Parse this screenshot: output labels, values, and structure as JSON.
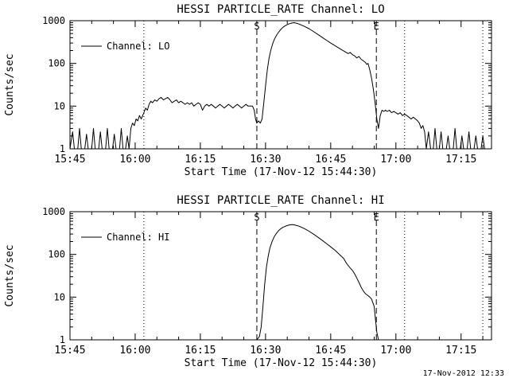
{
  "page": {
    "timestamp": "17-Nov-2012 12:33",
    "background": "#ffffff",
    "line_color": "#000000"
  },
  "chart_data": [
    {
      "type": "line",
      "title": "HESSI PARTICLE_RATE Channel: LO",
      "xlabel": "Start Time (17-Nov-12 15:44:30)",
      "ylabel": "Counts/sec",
      "yscale": "log",
      "ylim": [
        1,
        1000
      ],
      "yticks": [
        1,
        10,
        100,
        1000
      ],
      "x_unit": "minutes since 15:45",
      "xlim": [
        0,
        97
      ],
      "x_minor_step": 5,
      "xticks": [
        {
          "t": 0,
          "label": "15:45"
        },
        {
          "t": 15,
          "label": "16:00"
        },
        {
          "t": 30,
          "label": "16:15"
        },
        {
          "t": 45,
          "label": "16:30"
        },
        {
          "t": 60,
          "label": "16:45"
        },
        {
          "t": 75,
          "label": "17:00"
        },
        {
          "t": 90,
          "label": "17:15"
        }
      ],
      "legend": {
        "label": "Channel: LO"
      },
      "annotations": [
        {
          "t": 17,
          "style": "dotted",
          "label": ""
        },
        {
          "t": 43,
          "style": "dashed",
          "label": "S"
        },
        {
          "t": 70.5,
          "style": "dashed",
          "label": "E"
        },
        {
          "t": 77,
          "style": "dotted",
          "label": ""
        },
        {
          "t": 95,
          "style": "dotted",
          "label": ""
        }
      ],
      "series": [
        {
          "name": "Channel: LO",
          "points": [
            [
              0,
              1
            ],
            [
              0.6,
              2.5
            ],
            [
              1,
              1
            ],
            [
              1.8,
              1
            ],
            [
              2.2,
              3
            ],
            [
              2.6,
              1
            ],
            [
              3.4,
              1
            ],
            [
              3.8,
              2.2
            ],
            [
              4.2,
              1
            ],
            [
              5,
              1
            ],
            [
              5.4,
              3
            ],
            [
              5.8,
              1
            ],
            [
              6.6,
              1
            ],
            [
              7,
              2.5
            ],
            [
              7.4,
              1
            ],
            [
              8.2,
              1
            ],
            [
              8.6,
              3
            ],
            [
              9,
              1
            ],
            [
              9.8,
              1
            ],
            [
              10.2,
              2.2
            ],
            [
              10.6,
              1
            ],
            [
              11.4,
              1
            ],
            [
              11.8,
              3
            ],
            [
              12.2,
              1
            ],
            [
              12.8,
              1
            ],
            [
              13.2,
              2
            ],
            [
              13.6,
              1
            ],
            [
              14,
              3
            ],
            [
              14.4,
              4
            ],
            [
              14.8,
              3.5
            ],
            [
              15.2,
              5
            ],
            [
              15.6,
              4.5
            ],
            [
              16,
              6
            ],
            [
              16.4,
              5
            ],
            [
              17,
              7
            ],
            [
              17.4,
              9
            ],
            [
              17.8,
              8
            ],
            [
              18.2,
              11
            ],
            [
              18.6,
              13
            ],
            [
              19,
              12
            ],
            [
              19.5,
              14
            ],
            [
              20,
              13
            ],
            [
              20.5,
              15
            ],
            [
              21,
              16
            ],
            [
              21.5,
              14
            ],
            [
              22,
              15
            ],
            [
              22.5,
              16
            ],
            [
              23,
              14
            ],
            [
              23.5,
              12
            ],
            [
              24,
              13
            ],
            [
              24.5,
              14
            ],
            [
              25,
              12
            ],
            [
              25.5,
              13
            ],
            [
              26,
              12
            ],
            [
              26.5,
              11
            ],
            [
              27,
              12
            ],
            [
              27.5,
              11
            ],
            [
              28,
              12
            ],
            [
              28.5,
              10
            ],
            [
              29,
              11
            ],
            [
              29.5,
              12
            ],
            [
              30,
              11
            ],
            [
              30.5,
              8
            ],
            [
              31,
              10
            ],
            [
              31.5,
              11
            ],
            [
              32,
              10
            ],
            [
              32.5,
              11
            ],
            [
              33,
              10
            ],
            [
              33.5,
              9
            ],
            [
              34,
              10
            ],
            [
              34.5,
              11
            ],
            [
              35,
              10
            ],
            [
              35.5,
              9
            ],
            [
              36,
              10
            ],
            [
              36.5,
              11
            ],
            [
              37,
              10
            ],
            [
              37.5,
              9
            ],
            [
              38,
              10
            ],
            [
              38.5,
              11
            ],
            [
              39,
              10
            ],
            [
              39.5,
              9
            ],
            [
              40,
              10
            ],
            [
              40.5,
              11
            ],
            [
              41,
              10
            ],
            [
              42,
              10
            ],
            [
              42.4,
              8
            ],
            [
              42.7,
              5
            ],
            [
              43,
              4
            ],
            [
              43.4,
              4.5
            ],
            [
              43.8,
              4
            ],
            [
              44.2,
              5
            ],
            [
              44.6,
              12
            ],
            [
              45,
              30
            ],
            [
              45.4,
              70
            ],
            [
              45.8,
              130
            ],
            [
              46.2,
              200
            ],
            [
              46.6,
              280
            ],
            [
              47,
              360
            ],
            [
              47.5,
              450
            ],
            [
              48,
              540
            ],
            [
              48.5,
              620
            ],
            [
              49,
              700
            ],
            [
              49.5,
              760
            ],
            [
              50,
              810
            ],
            [
              50.5,
              850
            ],
            [
              51,
              880
            ],
            [
              51.5,
              900
            ],
            [
              52,
              880
            ],
            [
              52.5,
              850
            ],
            [
              53,
              810
            ],
            [
              54,
              730
            ],
            [
              55,
              650
            ],
            [
              56,
              560
            ],
            [
              57,
              480
            ],
            [
              58,
              410
            ],
            [
              59,
              350
            ],
            [
              60,
              300
            ],
            [
              61,
              260
            ],
            [
              62,
              225
            ],
            [
              63,
              195
            ],
            [
              64,
              170
            ],
            [
              64.5,
              180
            ],
            [
              65,
              160
            ],
            [
              65.5,
              150
            ],
            [
              66,
              135
            ],
            [
              66.5,
              145
            ],
            [
              67,
              125
            ],
            [
              67.5,
              115
            ],
            [
              68,
              105
            ],
            [
              68.3,
              95
            ],
            [
              68.6,
              100
            ],
            [
              69,
              70
            ],
            [
              69.4,
              45
            ],
            [
              69.8,
              25
            ],
            [
              70.2,
              12
            ],
            [
              70.6,
              5
            ],
            [
              71,
              3
            ],
            [
              71.4,
              6
            ],
            [
              71.8,
              8
            ],
            [
              72.2,
              7.5
            ],
            [
              72.6,
              8
            ],
            [
              73,
              7.5
            ],
            [
              73.5,
              8
            ],
            [
              74,
              7
            ],
            [
              74.5,
              7.5
            ],
            [
              75,
              7
            ],
            [
              75.5,
              6.5
            ],
            [
              76,
              7
            ],
            [
              76.5,
              6
            ],
            [
              77,
              6.5
            ],
            [
              77.5,
              6
            ],
            [
              78,
              5.5
            ],
            [
              78.5,
              5
            ],
            [
              79,
              5.5
            ],
            [
              79.5,
              5
            ],
            [
              80,
              4.5
            ],
            [
              80.4,
              4
            ],
            [
              80.8,
              3
            ],
            [
              81.2,
              3.5
            ],
            [
              81.6,
              2.5
            ],
            [
              82,
              1
            ],
            [
              82.5,
              2.5
            ],
            [
              83,
              1
            ],
            [
              83.6,
              1
            ],
            [
              84,
              3
            ],
            [
              84.4,
              1
            ],
            [
              85,
              1
            ],
            [
              85.4,
              2.5
            ],
            [
              85.8,
              1
            ],
            [
              86.6,
              1
            ],
            [
              87,
              2
            ],
            [
              87.4,
              1
            ],
            [
              88.2,
              1
            ],
            [
              88.6,
              3
            ],
            [
              89,
              1
            ],
            [
              89.8,
              1
            ],
            [
              90.2,
              2
            ],
            [
              90.6,
              1
            ],
            [
              91.4,
              1
            ],
            [
              91.8,
              2.5
            ],
            [
              92.2,
              1
            ],
            [
              93,
              1
            ],
            [
              93.4,
              2
            ],
            [
              93.8,
              1
            ],
            [
              94.6,
              1
            ],
            [
              95,
              2
            ],
            [
              95.4,
              1
            ],
            [
              96,
              1
            ]
          ]
        }
      ]
    },
    {
      "type": "line",
      "title": "HESSI PARTICLE_RATE Channel: HI",
      "xlabel": "Start Time (17-Nov-12 15:44:30)",
      "ylabel": "Counts/sec",
      "yscale": "log",
      "ylim": [
        1,
        1000
      ],
      "yticks": [
        1,
        10,
        100,
        1000
      ],
      "x_unit": "minutes since 15:45",
      "xlim": [
        0,
        97
      ],
      "x_minor_step": 5,
      "xticks": [
        {
          "t": 0,
          "label": "15:45"
        },
        {
          "t": 15,
          "label": "16:00"
        },
        {
          "t": 30,
          "label": "16:15"
        },
        {
          "t": 45,
          "label": "16:30"
        },
        {
          "t": 60,
          "label": "16:45"
        },
        {
          "t": 75,
          "label": "17:00"
        },
        {
          "t": 90,
          "label": "17:15"
        }
      ],
      "legend": {
        "label": "Channel: HI"
      },
      "annotations": [
        {
          "t": 17,
          "style": "dotted",
          "label": ""
        },
        {
          "t": 43,
          "style": "dashed",
          "label": "S"
        },
        {
          "t": 70.5,
          "style": "dashed",
          "label": "E"
        },
        {
          "t": 77,
          "style": "dotted",
          "label": ""
        },
        {
          "t": 95,
          "style": "dotted",
          "label": ""
        }
      ],
      "series": [
        {
          "name": "Channel: HI",
          "points": [
            [
              0,
              1
            ],
            [
              43,
              1
            ],
            [
              43.6,
              1.2
            ],
            [
              44,
              2
            ],
            [
              44.4,
              6
            ],
            [
              44.8,
              20
            ],
            [
              45.2,
              50
            ],
            [
              45.6,
              90
            ],
            [
              46,
              140
            ],
            [
              46.5,
              200
            ],
            [
              47,
              260
            ],
            [
              47.5,
              310
            ],
            [
              48,
              360
            ],
            [
              48.5,
              400
            ],
            [
              49,
              430
            ],
            [
              49.5,
              455
            ],
            [
              50,
              475
            ],
            [
              50.5,
              490
            ],
            [
              51,
              500
            ],
            [
              51.5,
              495
            ],
            [
              52,
              480
            ],
            [
              52.5,
              465
            ],
            [
              53,
              445
            ],
            [
              54,
              400
            ],
            [
              55,
              350
            ],
            [
              56,
              300
            ],
            [
              57,
              255
            ],
            [
              58,
              215
            ],
            [
              59,
              180
            ],
            [
              60,
              150
            ],
            [
              61,
              125
            ],
            [
              62,
              100
            ],
            [
              63,
              80
            ],
            [
              63.5,
              65
            ],
            [
              64,
              55
            ],
            [
              64.5,
              48
            ],
            [
              65,
              42
            ],
            [
              65.5,
              35
            ],
            [
              66,
              28
            ],
            [
              66.5,
              22
            ],
            [
              67,
              17
            ],
            [
              67.5,
              14
            ],
            [
              68,
              12
            ],
            [
              68.5,
              11
            ],
            [
              69,
              10
            ],
            [
              69.4,
              9
            ],
            [
              70,
              6
            ],
            [
              70.3,
              3
            ],
            [
              70.6,
              1.5
            ],
            [
              71,
              1
            ],
            [
              96,
              1
            ]
          ]
        }
      ]
    }
  ]
}
